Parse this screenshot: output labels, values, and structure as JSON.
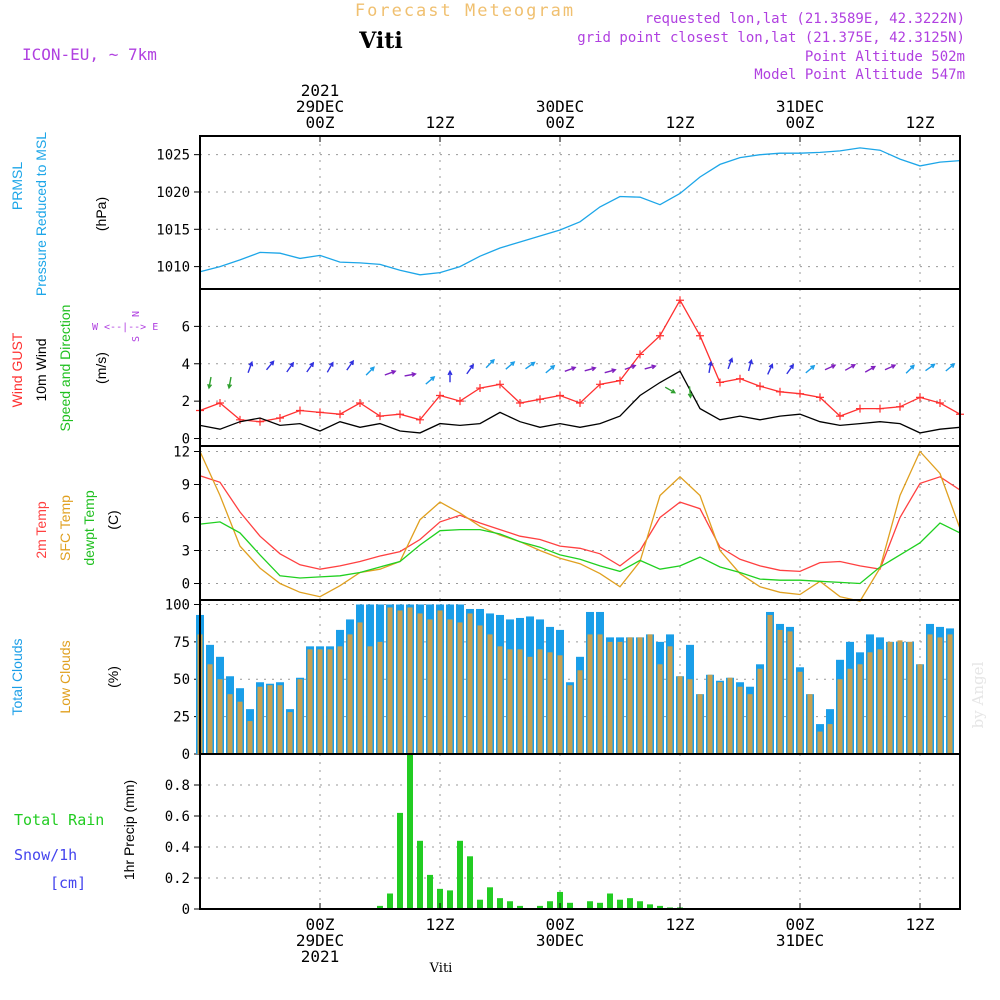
{
  "header": {
    "title": "Forecast Meteogram",
    "station": "Viti",
    "model": "ICON-EU, ~ 7km",
    "requested": "requested lon,lat (21.3589E, 42.3222N)",
    "grid_point": "grid point closest lon,lat (21.375E, 42.3125N)",
    "point_altitude": "Point Altitude 502m",
    "model_altitude": "Model Point Altitude 547m",
    "footer_station": "Viti",
    "watermark": "by Angel"
  },
  "colors": {
    "pressure": "#1da6e8",
    "gust": "#ff3030",
    "wind": "#000000",
    "temp2m": "#ff4040",
    "sfc": "#e0a020",
    "dewpt": "#20d020",
    "total_clouds": "#1a9ee8",
    "low_clouds": "#c8a050",
    "rain": "#22cc22",
    "snow": "#4444ee",
    "purple": "#b040e0",
    "title": "#f0c070"
  },
  "time_axis": {
    "top": [
      {
        "t": 12,
        "lines": [
          "2021",
          "29DEC",
          "00Z"
        ]
      },
      {
        "t": 24,
        "lines": [
          "12Z"
        ]
      },
      {
        "t": 36,
        "lines": [
          "30DEC",
          "00Z"
        ]
      },
      {
        "t": 48,
        "lines": [
          "12Z"
        ]
      },
      {
        "t": 60,
        "lines": [
          "31DEC",
          "00Z"
        ]
      },
      {
        "t": 72,
        "lines": [
          "12Z"
        ]
      }
    ],
    "bottom": [
      {
        "t": 12,
        "lines": [
          "00Z",
          "29DEC",
          "2021"
        ]
      },
      {
        "t": 24,
        "lines": [
          "12Z"
        ]
      },
      {
        "t": 36,
        "lines": [
          "00Z",
          "30DEC"
        ]
      },
      {
        "t": 48,
        "lines": [
          "12Z"
        ]
      },
      {
        "t": 60,
        "lines": [
          "00Z",
          "31DEC"
        ]
      },
      {
        "t": 72,
        "lines": [
          "12Z"
        ]
      }
    ]
  },
  "chart_data": [
    {
      "type": "line",
      "name": "pressure",
      "labels": [
        "PRMSL",
        "Pressure Reduced to MSL",
        "(hPa)"
      ],
      "ylim": [
        1007,
        1027.5
      ],
      "yticks": [
        1010,
        1015,
        1020,
        1025
      ],
      "x": [
        0,
        2,
        4,
        6,
        8,
        10,
        12,
        14,
        16,
        18,
        20,
        22,
        24,
        26,
        28,
        30,
        32,
        34,
        36,
        38,
        40,
        42,
        44,
        46,
        48,
        50,
        52,
        54,
        56,
        58,
        60,
        62,
        64,
        66,
        68,
        70,
        72,
        74,
        76
      ],
      "series": [
        {
          "name": "PRMSL",
          "values": [
            1009.3,
            1010.0,
            1010.9,
            1011.9,
            1011.8,
            1011.1,
            1011.5,
            1010.6,
            1010.5,
            1010.3,
            1009.5,
            1008.9,
            1009.2,
            1010.0,
            1011.4,
            1012.5,
            1013.3,
            1014.1,
            1014.9,
            1016.0,
            1018.0,
            1019.4,
            1019.3,
            1018.3,
            1019.8,
            1022.0,
            1023.7,
            1024.6,
            1025.0,
            1025.2,
            1025.2,
            1025.3,
            1025.5,
            1025.9,
            1025.6,
            1024.4,
            1023.5,
            1024.0,
            1024.2
          ]
        }
      ]
    },
    {
      "type": "line",
      "name": "wind",
      "labels": [
        "Wind GUST",
        "10m Wind",
        "Speed and Direction",
        "(m/s)"
      ],
      "compass": [
        "N",
        "S",
        "W <--|--> E"
      ],
      "ylim": [
        -0.4,
        8.0
      ],
      "yticks": [
        0,
        2,
        4,
        6
      ],
      "x": [
        0,
        2,
        4,
        6,
        8,
        10,
        12,
        14,
        16,
        18,
        20,
        22,
        24,
        26,
        28,
        30,
        32,
        34,
        36,
        38,
        40,
        42,
        44,
        46,
        48,
        50,
        52,
        54,
        56,
        58,
        60,
        62,
        64,
        66,
        68,
        70,
        72,
        74,
        76
      ],
      "series": [
        {
          "name": "Wind GUST",
          "values": [
            1.5,
            1.9,
            1.0,
            0.9,
            1.1,
            1.5,
            1.4,
            1.3,
            1.9,
            1.2,
            1.3,
            1.0,
            2.3,
            2.0,
            2.7,
            2.9,
            1.9,
            2.1,
            2.3,
            1.9,
            2.9,
            3.1,
            4.5,
            5.5,
            7.4,
            5.5,
            3.0,
            3.2,
            2.8,
            2.5,
            2.4,
            2.2,
            1.2,
            1.6,
            1.6,
            1.7,
            2.2,
            1.9,
            1.3
          ]
        },
        {
          "name": "10m Wind",
          "values": [
            0.7,
            0.5,
            0.9,
            1.1,
            0.7,
            0.8,
            0.4,
            0.9,
            0.6,
            0.8,
            0.4,
            0.3,
            0.8,
            0.7,
            0.8,
            1.4,
            0.9,
            0.6,
            0.8,
            0.6,
            0.8,
            1.2,
            2.3,
            3.0,
            3.6,
            1.6,
            1.0,
            1.2,
            1.0,
            1.2,
            1.3,
            0.9,
            0.7,
            0.8,
            0.9,
            0.8,
            0.3,
            0.5,
            0.6
          ]
        }
      ],
      "arrows": {
        "t": [
          1,
          3,
          5,
          7,
          9,
          11,
          13,
          15,
          17,
          19,
          21,
          23,
          25,
          27,
          29,
          31,
          33,
          35,
          37,
          39,
          41,
          43,
          45,
          47,
          49,
          51,
          53,
          55,
          57,
          59,
          61,
          63,
          65,
          67,
          69,
          71,
          73,
          75
        ],
        "dir_deg": [
          10,
          10,
          200,
          220,
          215,
          215,
          210,
          215,
          225,
          250,
          260,
          230,
          180,
          215,
          225,
          230,
          235,
          230,
          250,
          255,
          255,
          250,
          255,
          300,
          355,
          190,
          200,
          195,
          205,
          215,
          230,
          245,
          240,
          240,
          245,
          225,
          235,
          230
        ],
        "speed": [
          3.0,
          3.0,
          3.8,
          3.9,
          3.8,
          3.8,
          3.8,
          3.9,
          3.6,
          3.5,
          3.4,
          3.1,
          3.3,
          3.7,
          4.0,
          3.9,
          3.9,
          3.7,
          3.7,
          3.7,
          3.6,
          3.8,
          3.8,
          2.6,
          2.5,
          3.8,
          4.0,
          3.9,
          3.7,
          3.7,
          3.7,
          3.8,
          3.8,
          3.7,
          3.8,
          3.7,
          3.8,
          3.8
        ]
      }
    },
    {
      "type": "line",
      "name": "temperature",
      "labels": [
        "2m Temp",
        "SFC Temp",
        "dewpt Temp",
        "(C)"
      ],
      "ylim": [
        -1.5,
        12.5
      ],
      "yticks": [
        0,
        3,
        6,
        9,
        12
      ],
      "x": [
        0,
        2,
        4,
        6,
        8,
        10,
        12,
        14,
        16,
        18,
        20,
        22,
        24,
        26,
        28,
        30,
        32,
        34,
        36,
        38,
        40,
        42,
        44,
        46,
        48,
        50,
        52,
        54,
        56,
        58,
        60,
        62,
        64,
        66,
        68,
        70,
        72,
        74,
        76
      ],
      "series": [
        {
          "name": "2m Temp",
          "values": [
            9.8,
            9.2,
            6.5,
            4.3,
            2.7,
            1.7,
            1.3,
            1.6,
            2.0,
            2.5,
            2.9,
            4.0,
            5.6,
            6.2,
            5.5,
            4.9,
            4.3,
            4.0,
            3.4,
            3.2,
            2.7,
            1.6,
            3.0,
            6.0,
            7.4,
            6.8,
            3.3,
            2.2,
            1.6,
            1.2,
            1.1,
            1.9,
            2.0,
            1.6,
            1.3,
            6.0,
            9.1,
            9.7,
            8.5
          ]
        },
        {
          "name": "SFC Temp",
          "values": [
            12.0,
            8.0,
            3.4,
            1.4,
            0.0,
            -0.8,
            -1.2,
            -0.2,
            1.0,
            1.3,
            2.0,
            5.8,
            7.4,
            6.4,
            5.2,
            4.4,
            3.8,
            3.0,
            2.3,
            1.8,
            0.9,
            -0.3,
            2.0,
            8.0,
            9.7,
            8.0,
            3.0,
            0.9,
            -0.3,
            -0.8,
            -1.0,
            0.2,
            -1.2,
            -1.6,
            1.4,
            8.0,
            12.0,
            10.0,
            5.0
          ]
        },
        {
          "name": "dewpt Temp",
          "values": [
            5.4,
            5.6,
            4.6,
            2.6,
            0.7,
            0.5,
            0.6,
            0.7,
            1.0,
            1.5,
            2.0,
            3.5,
            4.8,
            4.9,
            4.9,
            4.5,
            3.8,
            3.3,
            2.6,
            2.2,
            1.6,
            1.1,
            2.1,
            1.3,
            1.6,
            2.4,
            1.5,
            1.0,
            0.4,
            0.3,
            0.3,
            0.2,
            0.1,
            0.0,
            1.5,
            2.6,
            3.7,
            5.5,
            4.6
          ]
        }
      ]
    },
    {
      "type": "bar",
      "name": "clouds",
      "labels": [
        "Total Clouds",
        "Low Clouds",
        "(%)"
      ],
      "ylim": [
        0,
        103
      ],
      "yticks": [
        0,
        25,
        50,
        75,
        100
      ],
      "x": [
        0,
        1,
        2,
        3,
        4,
        5,
        6,
        7,
        8,
        9,
        10,
        11,
        12,
        13,
        14,
        15,
        16,
        17,
        18,
        19,
        20,
        21,
        22,
        23,
        24,
        25,
        26,
        27,
        28,
        29,
        30,
        31,
        32,
        33,
        34,
        35,
        36,
        37,
        38,
        39,
        40,
        41,
        42,
        43,
        44,
        45,
        46,
        47,
        48,
        49,
        50,
        51,
        52,
        53,
        54,
        55,
        56,
        57,
        58,
        59,
        60,
        61,
        62,
        63,
        64,
        65,
        66,
        67,
        68,
        69,
        70,
        71,
        72,
        73,
        74,
        75
      ],
      "series": [
        {
          "name": "Total Clouds",
          "values": [
            93,
            73,
            65,
            52,
            44,
            30,
            48,
            47,
            48,
            30,
            51,
            72,
            72,
            72,
            83,
            90,
            100,
            100,
            100,
            100,
            100,
            100,
            100,
            100,
            100,
            100,
            100,
            97,
            97,
            94,
            93,
            90,
            91,
            92,
            90,
            85,
            83,
            48,
            65,
            95,
            95,
            78,
            78,
            78,
            78,
            80,
            75,
            80,
            52,
            73,
            40,
            53,
            49,
            51,
            48,
            45,
            60,
            95,
            87,
            85,
            58,
            40,
            20,
            30,
            63,
            75,
            68,
            80,
            78,
            75,
            75,
            75,
            60,
            87,
            85,
            84
          ]
        },
        {
          "name": "Low Clouds",
          "values": [
            80,
            60,
            50,
            40,
            35,
            22,
            45,
            46,
            46,
            28,
            50,
            70,
            70,
            70,
            72,
            80,
            88,
            72,
            75,
            98,
            96,
            98,
            94,
            90,
            96,
            90,
            88,
            94,
            86,
            80,
            72,
            70,
            70,
            65,
            70,
            68,
            66,
            46,
            56,
            80,
            80,
            75,
            75,
            78,
            78,
            80,
            60,
            72,
            52,
            50,
            40,
            53,
            48,
            51,
            45,
            40,
            57,
            93,
            83,
            82,
            55,
            40,
            15,
            20,
            50,
            57,
            60,
            68,
            70,
            75,
            76,
            75,
            60,
            80,
            78,
            80
          ]
        }
      ]
    },
    {
      "type": "bar",
      "name": "precipitation",
      "labels": [
        "Total Rain",
        "Snow/1h",
        "[cm]",
        "1hr Precip (mm)"
      ],
      "ylim": [
        0,
        1.0
      ],
      "yticks": [
        0,
        0.2,
        0.4,
        0.6,
        0.8
      ],
      "x": [
        18,
        19,
        20,
        21,
        22,
        23,
        24,
        25,
        26,
        27,
        28,
        29,
        30,
        31,
        32,
        33,
        34,
        35,
        36,
        37,
        38,
        39,
        40,
        41,
        42,
        43,
        44,
        45,
        46,
        47,
        48
      ],
      "series": [
        {
          "name": "Total Rain",
          "values": [
            0.02,
            0.1,
            0.62,
            1.0,
            0.44,
            0.22,
            0.13,
            0.12,
            0.44,
            0.34,
            0.06,
            0.14,
            0.07,
            0.05,
            0.02,
            0.0,
            0.02,
            0.05,
            0.11,
            0.04,
            0.0,
            0.05,
            0.04,
            0.1,
            0.06,
            0.07,
            0.05,
            0.03,
            0.02,
            0.01,
            0.01
          ]
        },
        {
          "name": "Snow/1h",
          "values": [
            0,
            0,
            0,
            0,
            0,
            0,
            0,
            0,
            0,
            0,
            0,
            0,
            0,
            0,
            0,
            0,
            0,
            0,
            0,
            0,
            0,
            0,
            0,
            0,
            0,
            0,
            0,
            0,
            0,
            0,
            0
          ]
        }
      ]
    }
  ]
}
